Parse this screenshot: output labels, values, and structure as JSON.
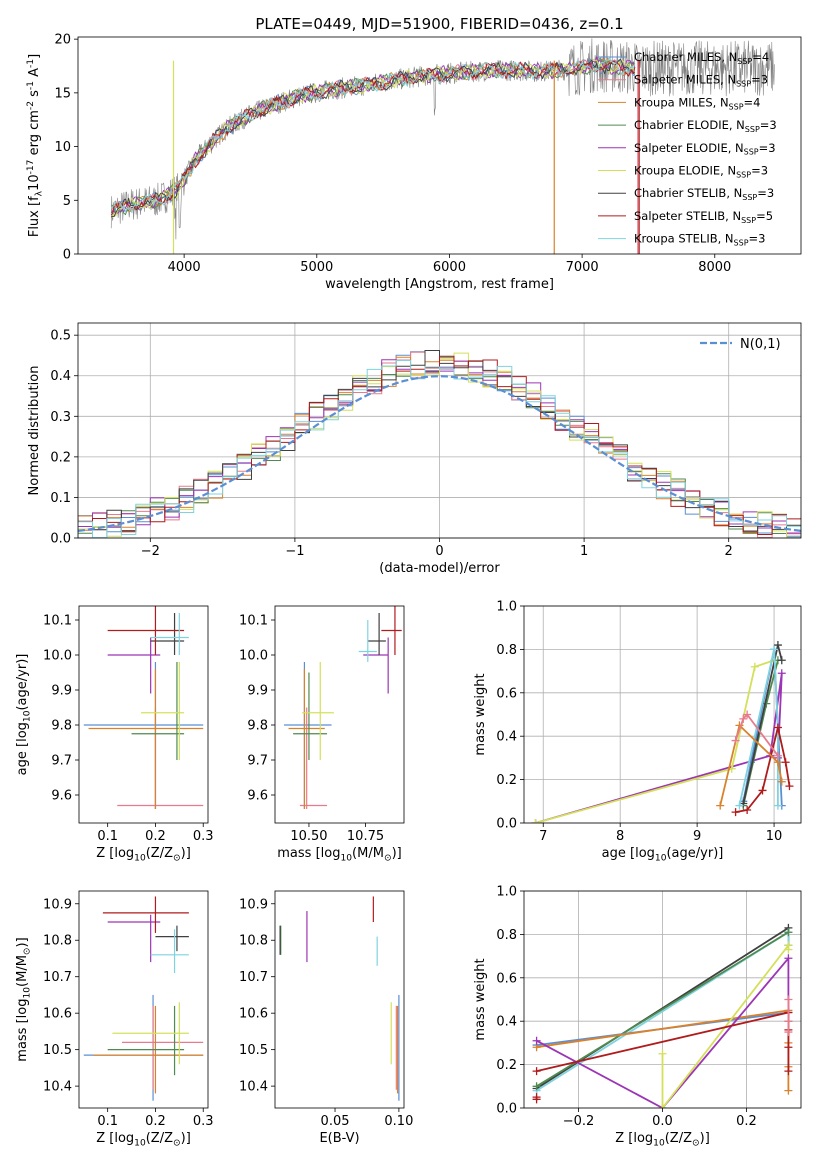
{
  "chart_data": [
    {
      "id": "spectrum",
      "type": "line",
      "title": "PLATE=0449, MJD=51900, FIBERID=0436, z=0.1",
      "xlabel": "wavelength [Angstrom, rest frame]",
      "ylabel": "Flux [f$_\\lambda$10$^{-17}$ erg cm$^{-2}$ s$^{-1}$ A$^{-1}$]",
      "xlim": [
        3200,
        8650
      ],
      "ylim": [
        0,
        20.2
      ],
      "xticks": [
        4000,
        5000,
        6000,
        7000,
        8000
      ],
      "xtick_labels": [
        "4000",
        "5000",
        "6000",
        "7000",
        "8000"
      ],
      "yticks": [
        0,
        5,
        10,
        15,
        20
      ],
      "ytick_labels": [
        "0",
        "5",
        "10",
        "15",
        "20"
      ],
      "grid": false,
      "legend_position": "top-right",
      "data_color": "#808080",
      "continuum_x": [
        3450,
        3600,
        3800,
        3950,
        4100,
        4300,
        4500,
        4700,
        4900,
        5100,
        5300,
        5500,
        5700,
        5900,
        6100,
        6300,
        6500,
        6700,
        6900,
        7100,
        7300,
        7400
      ],
      "continuum_y": [
        4.0,
        4.6,
        5.0,
        6.0,
        9.0,
        11.5,
        13.0,
        14.0,
        14.8,
        15.3,
        15.6,
        16.0,
        16.4,
        16.7,
        16.9,
        17.1,
        17.1,
        17.0,
        17.2,
        17.6,
        17.4,
        17.3
      ],
      "series": [
        {
          "name": "Chabrier MILES, N$_{SSP}$=4",
          "color": "#5b8fd4"
        },
        {
          "name": "Salpeter MILES, N$_{SSP}$=3",
          "color": "#e77b8d"
        },
        {
          "name": "Kroupa MILES, N$_{SSP}$=4",
          "color": "#d9822b"
        },
        {
          "name": "Chabrier ELODIE, N$_{SSP}$=3",
          "color": "#4f8a4f"
        },
        {
          "name": "Salpeter ELODIE, N$_{SSP}$=3",
          "color": "#9c35b5"
        },
        {
          "name": "Kroupa ELODIE, N$_{SSP}$=3",
          "color": "#d4e05a"
        },
        {
          "name": "Chabrier STELIB, N$_{SSP}$=3",
          "color": "#404040"
        },
        {
          "name": "Salpeter STELIB, N$_{SSP}$=5",
          "color": "#b01c1c"
        },
        {
          "name": "Kroupa STELIB, N$_{SSP}$=3",
          "color": "#7fd3e0"
        }
      ]
    },
    {
      "id": "residuals",
      "type": "line",
      "xlabel": "(data-model)/error",
      "ylabel": "Normed distribution",
      "xlim": [
        -2.5,
        2.5
      ],
      "ylim": [
        0,
        0.53
      ],
      "xticks": [
        -2,
        -1,
        0,
        1,
        2
      ],
      "xtick_labels": [
        "−2",
        "−1",
        "0",
        "1",
        "2"
      ],
      "yticks": [
        0,
        0.1,
        0.2,
        0.3,
        0.4,
        0.5
      ],
      "ytick_labels": [
        "0.0",
        "0.1",
        "0.2",
        "0.3",
        "0.4",
        "0.5"
      ],
      "grid": true,
      "legend_position": "top-right",
      "gaussian_label": "$\\mathcal{N}(0,1)$",
      "gaussian_color": "#5b8fd4",
      "histogram_bin_width": 0.1
    },
    {
      "id": "age-vs-Z",
      "type": "scatter",
      "xlabel": "Z [log$_{10}$($Z/Z_\\odot$)]",
      "ylabel": "age  [log$_{10}$($age/yr$)]",
      "xlim": [
        0.04,
        0.31
      ],
      "ylim": [
        9.52,
        10.14
      ],
      "xticks": [
        0.1,
        0.2,
        0.3
      ],
      "xtick_labels": [
        "0.1",
        "0.2",
        "0.3"
      ],
      "yticks": [
        9.6,
        9.7,
        9.8,
        9.9,
        10.0,
        10.1
      ],
      "ytick_labels": [
        "9.6",
        "9.7",
        "9.8",
        "9.9",
        "10.0",
        "10.1"
      ],
      "grid": false,
      "points": [
        {
          "x": 0.2,
          "y": 9.8,
          "xerr": [
            0.05,
            0.3
          ],
          "yerr": [
            9.56,
            9.98
          ],
          "color": "#5b8fd4"
        },
        {
          "x": 0.2,
          "y": 9.57,
          "xerr": [
            0.12,
            0.3
          ],
          "yerr": [
            9.56,
            9.85
          ],
          "color": "#e77b8d"
        },
        {
          "x": 0.2,
          "y": 9.79,
          "xerr": [
            0.06,
            0.3
          ],
          "yerr": [
            9.56,
            9.96
          ],
          "color": "#d9822b"
        },
        {
          "x": 0.245,
          "y": 9.775,
          "xerr": [
            0.15,
            0.26
          ],
          "yerr": [
            9.7,
            9.98
          ],
          "color": "#4f8a4f"
        },
        {
          "x": 0.19,
          "y": 10.0,
          "xerr": [
            0.1,
            0.21
          ],
          "yerr": [
            9.89,
            10.05
          ],
          "color": "#9c35b5"
        },
        {
          "x": 0.25,
          "y": 9.835,
          "xerr": [
            0.17,
            0.26
          ],
          "yerr": [
            9.7,
            9.98
          ],
          "color": "#d4e05a"
        },
        {
          "x": 0.24,
          "y": 10.04,
          "xerr": [
            0.19,
            0.26
          ],
          "yerr": [
            10.0,
            10.12
          ],
          "color": "#404040"
        },
        {
          "x": 0.2,
          "y": 10.07,
          "xerr": [
            0.1,
            0.26
          ],
          "yerr": [
            10.0,
            10.14
          ],
          "color": "#b01c1c"
        },
        {
          "x": 0.25,
          "y": 10.05,
          "xerr": [
            0.19,
            0.27
          ],
          "yerr": [
            10.0,
            10.12
          ],
          "color": "#7fd3e0"
        }
      ]
    },
    {
      "id": "age-vs-mass",
      "type": "scatter",
      "xlabel": "mass [log$_{10}$($M/M_\\odot$)]",
      "ylabel": "",
      "xlim": [
        10.35,
        10.92
      ],
      "ylim": [
        9.52,
        10.14
      ],
      "xticks": [
        10.5,
        10.75
      ],
      "xtick_labels": [
        "10.50",
        "10.75"
      ],
      "yticks": [
        9.6,
        9.7,
        9.8,
        9.9,
        10.0,
        10.1
      ],
      "ytick_labels": [
        "9.6",
        "9.7",
        "9.8",
        "9.9",
        "10.0",
        "10.1"
      ],
      "grid": false,
      "points": [
        {
          "x": 10.48,
          "y": 9.8,
          "xerr": [
            10.39,
            10.6
          ],
          "yerr": [
            9.56,
            9.98
          ],
          "color": "#5b8fd4"
        },
        {
          "x": 10.49,
          "y": 9.57,
          "xerr": [
            10.46,
            10.58
          ],
          "yerr": [
            9.56,
            9.85
          ],
          "color": "#e77b8d"
        },
        {
          "x": 10.48,
          "y": 9.79,
          "xerr": [
            10.41,
            10.57
          ],
          "yerr": [
            9.56,
            9.96
          ],
          "color": "#d9822b"
        },
        {
          "x": 10.5,
          "y": 9.775,
          "xerr": [
            10.43,
            10.58
          ],
          "yerr": [
            9.7,
            9.95
          ],
          "color": "#4f8a4f"
        },
        {
          "x": 10.85,
          "y": 10.0,
          "xerr": [
            10.74,
            10.85
          ],
          "yerr": [
            9.89,
            10.05
          ],
          "color": "#9c35b5"
        },
        {
          "x": 10.55,
          "y": 9.835,
          "xerr": [
            10.47,
            10.61
          ],
          "yerr": [
            9.7,
            9.98
          ],
          "color": "#d4e05a"
        },
        {
          "x": 10.81,
          "y": 10.04,
          "xerr": [
            10.76,
            10.84
          ],
          "yerr": [
            10.0,
            10.12
          ],
          "color": "#404040"
        },
        {
          "x": 10.88,
          "y": 10.07,
          "xerr": [
            10.82,
            10.91
          ],
          "yerr": [
            10.0,
            10.14
          ],
          "color": "#b01c1c"
        },
        {
          "x": 10.76,
          "y": 10.01,
          "xerr": [
            10.72,
            10.8
          ],
          "yerr": [
            9.98,
            10.1
          ],
          "color": "#7fd3e0"
        }
      ]
    },
    {
      "id": "weight-vs-age",
      "type": "line",
      "xlabel": "age  [log$_{10}$($age/yr$)]",
      "ylabel": "mass weight",
      "xlim": [
        6.75,
        10.35
      ],
      "ylim": [
        0,
        1.0
      ],
      "xticks": [
        7,
        8,
        9,
        10
      ],
      "xtick_labels": [
        "7",
        "8",
        "9",
        "10"
      ],
      "yticks": [
        0,
        0.2,
        0.4,
        0.6,
        0.8,
        1.0
      ],
      "ytick_labels": [
        "0.0",
        "0.2",
        "0.4",
        "0.6",
        "0.8",
        "1.0"
      ],
      "grid": true,
      "series": [
        {
          "color": "#9c35b5",
          "x": [
            6.9,
            9.95,
            10.1,
            10.05
          ],
          "y": [
            0.0,
            0.31,
            0.69,
            0.3
          ]
        },
        {
          "color": "#d4e05a",
          "x": [
            6.9,
            9.45,
            9.75,
            10.0
          ],
          "y": [
            0.0,
            0.25,
            0.72,
            0.75
          ]
        },
        {
          "color": "#5b8fd4",
          "x": [
            9.6,
            9.7,
            10.0,
            10.1
          ],
          "y": [
            0.1,
            0.28,
            0.8,
            0.08
          ]
        },
        {
          "color": "#4f8a4f",
          "x": [
            9.6,
            9.9,
            10.05
          ],
          "y": [
            0.08,
            0.55,
            0.75
          ]
        },
        {
          "color": "#404040",
          "x": [
            9.6,
            10.05,
            10.1
          ],
          "y": [
            0.09,
            0.82,
            0.75
          ]
        },
        {
          "color": "#7fd3e0",
          "x": [
            9.55,
            10.0,
            10.05,
            10.05
          ],
          "y": [
            0.08,
            0.8,
            0.44,
            0.08
          ]
        },
        {
          "color": "#b01c1c",
          "x": [
            9.5,
            9.65,
            9.85,
            10.05,
            10.15,
            10.2
          ],
          "y": [
            0.05,
            0.06,
            0.15,
            0.44,
            0.28,
            0.17
          ]
        },
        {
          "color": "#d9822b",
          "x": [
            9.3,
            9.55,
            10.05,
            10.1
          ],
          "y": [
            0.08,
            0.45,
            0.28,
            0.19
          ]
        },
        {
          "color": "#e77b8d",
          "x": [
            9.5,
            9.6,
            9.65,
            10.05
          ],
          "y": [
            0.38,
            0.48,
            0.5,
            0.31
          ]
        }
      ]
    },
    {
      "id": "mass-vs-Z",
      "type": "scatter",
      "xlabel": "Z [log$_{10}$($Z/Z_\\odot$)]",
      "ylabel": "mass [log$_{10}$($M/M_\\odot$)]",
      "xlim": [
        0.04,
        0.31
      ],
      "ylim": [
        10.34,
        10.935
      ],
      "xticks": [
        0.1,
        0.2,
        0.3
      ],
      "xtick_labels": [
        "0.1",
        "0.2",
        "0.3"
      ],
      "yticks": [
        10.4,
        10.5,
        10.6,
        10.7,
        10.8,
        10.9
      ],
      "ytick_labels": [
        "10.4",
        "10.5",
        "10.6",
        "10.7",
        "10.8",
        "10.9"
      ],
      "grid": false,
      "points": [
        {
          "x": 0.195,
          "y": 10.485,
          "xerr": [
            0.05,
            0.3
          ],
          "yerr": [
            10.36,
            10.65
          ],
          "color": "#5b8fd4"
        },
        {
          "x": 0.195,
          "y": 10.52,
          "xerr": [
            0.13,
            0.3
          ],
          "yerr": [
            10.39,
            10.62
          ],
          "color": "#e77b8d"
        },
        {
          "x": 0.2,
          "y": 10.485,
          "xerr": [
            0.07,
            0.3
          ],
          "yerr": [
            10.38,
            10.62
          ],
          "color": "#d9822b"
        },
        {
          "x": 0.24,
          "y": 10.5,
          "xerr": [
            0.1,
            0.26
          ],
          "yerr": [
            10.43,
            10.62
          ],
          "color": "#4f8a4f"
        },
        {
          "x": 0.19,
          "y": 10.85,
          "xerr": [
            0.1,
            0.21
          ],
          "yerr": [
            10.74,
            10.87
          ],
          "color": "#9c35b5"
        },
        {
          "x": 0.25,
          "y": 10.545,
          "xerr": [
            0.11,
            0.27
          ],
          "yerr": [
            10.46,
            10.63
          ],
          "color": "#d4e05a"
        },
        {
          "x": 0.245,
          "y": 10.81,
          "xerr": [
            0.2,
            0.27
          ],
          "yerr": [
            10.77,
            10.84
          ],
          "color": "#404040"
        },
        {
          "x": 0.2,
          "y": 10.875,
          "xerr": [
            0.09,
            0.27
          ],
          "yerr": [
            10.82,
            10.92
          ],
          "color": "#b01c1c"
        },
        {
          "x": 0.24,
          "y": 10.76,
          "xerr": [
            0.19,
            0.27
          ],
          "yerr": [
            10.71,
            10.83
          ],
          "color": "#7fd3e0"
        }
      ]
    },
    {
      "id": "mass-vs-ebv",
      "type": "scatter",
      "xlabel": "E(B-V)",
      "ylabel": "",
      "xlim": [
        0.003,
        0.104
      ],
      "ylim": [
        10.34,
        10.935
      ],
      "xticks": [
        0.05,
        0.1
      ],
      "xtick_labels": [
        "0.05",
        "0.10"
      ],
      "yticks": [
        10.4,
        10.5,
        10.6,
        10.7,
        10.8,
        10.9
      ],
      "ytick_labels": [
        "10.4",
        "10.5",
        "10.6",
        "10.7",
        "10.8",
        "10.9"
      ],
      "grid": false,
      "points": [
        {
          "x": 0.1,
          "y": 10.49,
          "yerr": [
            10.36,
            10.65
          ],
          "color": "#5b8fd4"
        },
        {
          "x": 0.098,
          "y": 10.52,
          "yerr": [
            10.39,
            10.62
          ],
          "color": "#e77b8d"
        },
        {
          "x": 0.099,
          "y": 10.49,
          "yerr": [
            10.38,
            10.62
          ],
          "color": "#d9822b"
        },
        {
          "x": 0.0075,
          "y": 10.8,
          "yerr": [
            10.76,
            10.84
          ],
          "color": "#4f8a4f"
        },
        {
          "x": 0.028,
          "y": 10.81,
          "yerr": [
            10.74,
            10.88
          ],
          "color": "#9c35b5"
        },
        {
          "x": 0.094,
          "y": 10.54,
          "yerr": [
            10.46,
            10.63
          ],
          "color": "#d4e05a"
        },
        {
          "x": 0.007,
          "y": 10.8,
          "yerr": [
            10.76,
            10.84
          ],
          "color": "#404040"
        },
        {
          "x": 0.08,
          "y": 10.885,
          "yerr": [
            10.85,
            10.92
          ],
          "color": "#b01c1c"
        },
        {
          "x": 0.083,
          "y": 10.77,
          "yerr": [
            10.73,
            10.81
          ],
          "color": "#7fd3e0"
        }
      ]
    },
    {
      "id": "weight-vs-Z",
      "type": "line",
      "xlabel": "Z [log$_{10}$($Z/Z_\\odot$)]",
      "ylabel": "mass weight",
      "xlim": [
        -0.33,
        0.33
      ],
      "ylim": [
        0,
        1.0
      ],
      "xticks": [
        -0.2,
        0.0,
        0.2
      ],
      "xtick_labels": [
        "−0.2",
        "0.0",
        "0.2"
      ],
      "yticks": [
        0,
        0.2,
        0.4,
        0.6,
        0.8,
        1.0
      ],
      "ytick_labels": [
        "0.0",
        "0.2",
        "0.4",
        "0.6",
        "0.8",
        "1.0"
      ],
      "grid": true,
      "series": [
        {
          "color": "#404040",
          "x": [
            -0.3,
            0.3,
            0.3
          ],
          "y": [
            0.09,
            0.83,
            0.75
          ]
        },
        {
          "color": "#7fd3e0",
          "x": [
            -0.3,
            0.3,
            0.3
          ],
          "y": [
            0.08,
            0.81,
            0.75
          ]
        },
        {
          "color": "#4f8a4f",
          "x": [
            -0.3,
            0.3
          ],
          "y": [
            0.1,
            0.81
          ]
        },
        {
          "color": "#5b8fd4",
          "x": [
            -0.3,
            0.3,
            0.3
          ],
          "y": [
            0.29,
            0.44,
            0.4
          ]
        },
        {
          "color": "#d9822b",
          "x": [
            -0.3,
            0.3,
            0.3,
            0.3,
            0.3
          ],
          "y": [
            0.28,
            0.45,
            0.3,
            0.19,
            0.08
          ]
        },
        {
          "color": "#9c35b5",
          "x": [
            -0.3,
            0.0,
            0.3,
            0.3
          ],
          "y": [
            0.31,
            0.0,
            0.69,
            0.44
          ]
        },
        {
          "color": "#d4e05a",
          "x": [
            0.0,
            0.0,
            0.3,
            0.3
          ],
          "y": [
            0.25,
            0.0,
            0.75,
            0.73
          ]
        },
        {
          "color": "#b01c1c",
          "x": [
            -0.3,
            0.3,
            0.3,
            0.3,
            0.3
          ],
          "y": [
            0.17,
            0.44,
            0.36,
            0.28,
            0.17
          ]
        },
        {
          "color": "#b01c1c",
          "x": [
            -0.3,
            -0.3
          ],
          "y": [
            0.05,
            0.04
          ]
        },
        {
          "color": "#e77b8d",
          "x": [
            0.3,
            0.3,
            0.3
          ],
          "y": [
            0.5,
            0.4,
            0.35
          ]
        }
      ]
    }
  ]
}
